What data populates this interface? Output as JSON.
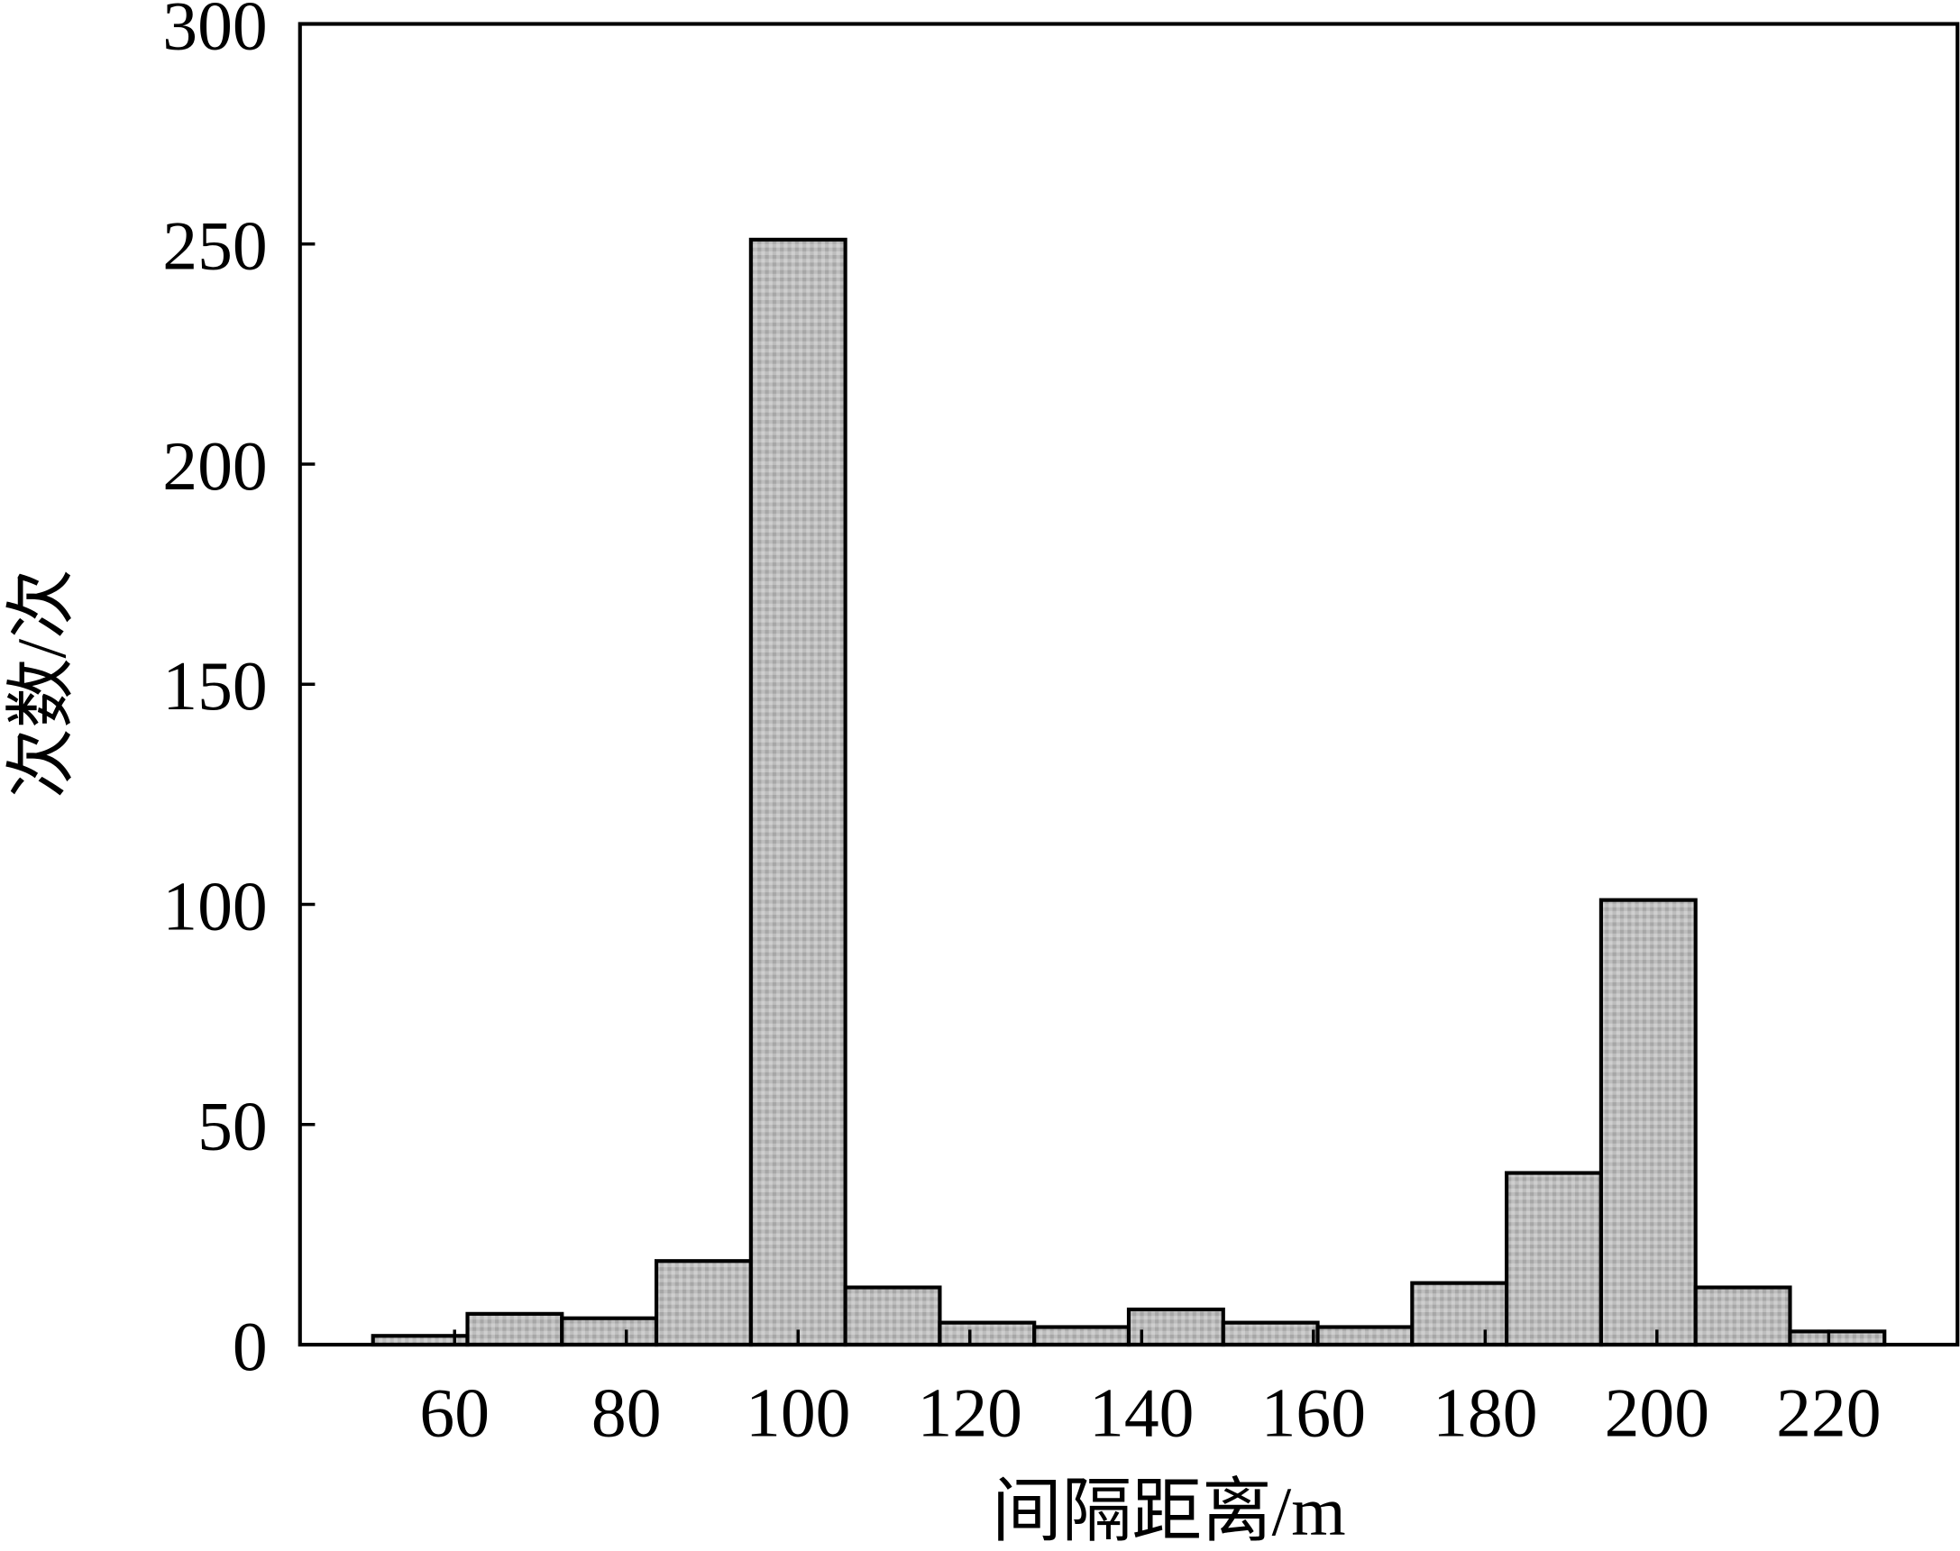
{
  "chart_data": {
    "type": "histogram",
    "x_label": "间隔距离/m",
    "y_label": "次数/次",
    "bins": [
      50.5,
      61.5,
      72.5,
      83.5,
      94.5,
      105.5,
      116.5,
      127.5,
      138.5,
      149.5,
      160.5,
      171.5,
      182.5,
      193.5,
      204.5,
      215.5,
      226.5
    ],
    "values": [
      2,
      7,
      6,
      19,
      251,
      13,
      5,
      4,
      8,
      5,
      4,
      14,
      39,
      101,
      13,
      3
    ],
    "color": "#b8b8b8",
    "xlim": [
      42,
      235
    ],
    "xticks": [
      60,
      80,
      100,
      120,
      140,
      160,
      180,
      200,
      220
    ],
    "ylim": [
      0,
      300
    ],
    "yticks": [
      0,
      50,
      100,
      150,
      200,
      250,
      300
    ]
  }
}
